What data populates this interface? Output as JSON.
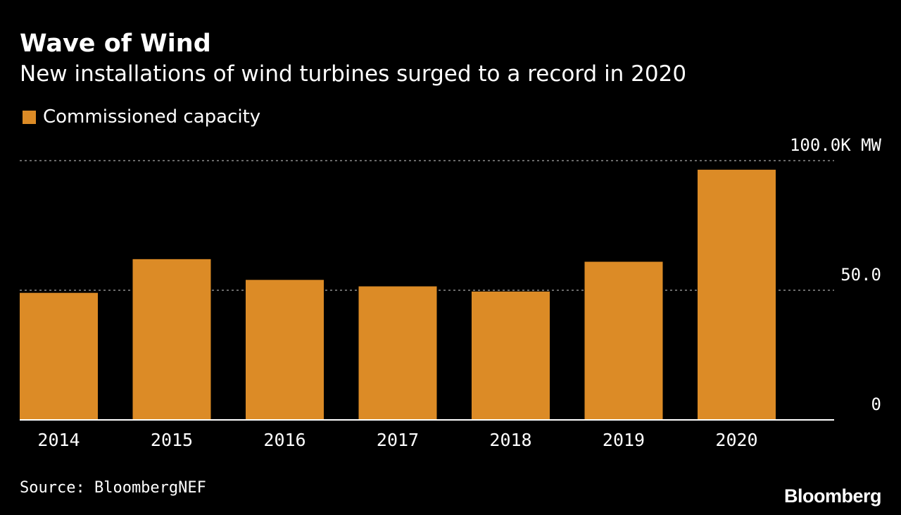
{
  "header": {
    "title": "Wave of Wind",
    "subtitle": "New installations of wind turbines surged to a record in 2020"
  },
  "legend": {
    "label": "Commissioned capacity"
  },
  "footer": {
    "source": "Source: BloombergNEF",
    "brand": "Bloomberg"
  },
  "colors": {
    "background": "#000000",
    "bar": "#dc8b26",
    "text": "#ffffff",
    "grid": "#8c8c8c"
  },
  "chart_data": {
    "type": "bar",
    "title": "Wave of Wind",
    "subtitle": "New installations of wind turbines surged to a record in 2020",
    "categories": [
      "2014",
      "2015",
      "2016",
      "2017",
      "2018",
      "2019",
      "2020"
    ],
    "series": [
      {
        "name": "Commissioned capacity",
        "values": [
          49,
          62,
          54,
          51.5,
          49.5,
          61,
          96.5
        ]
      }
    ],
    "xlabel": "",
    "ylabel": "",
    "ylim": [
      0,
      100
    ],
    "yticks": [
      {
        "value": 0,
        "label": "0"
      },
      {
        "value": 50,
        "label": "50.0"
      },
      {
        "value": 100,
        "label": "100.0K MW"
      }
    ],
    "grid": true,
    "legend_position": "top-left"
  }
}
